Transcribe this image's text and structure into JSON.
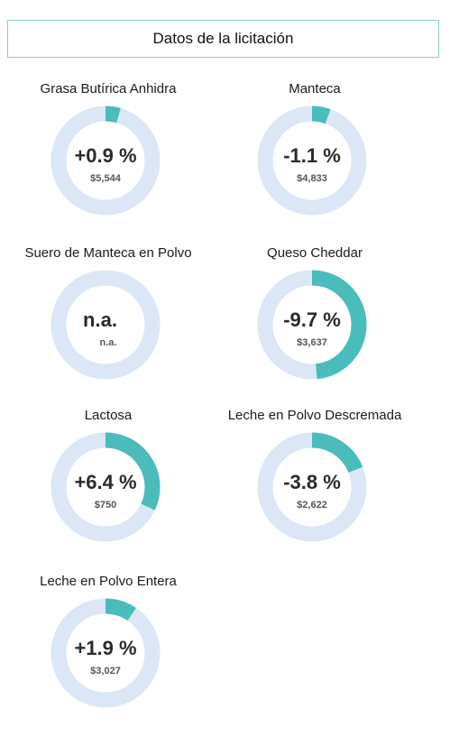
{
  "header": {
    "title": "Datos de la licitación"
  },
  "colors": {
    "track": "#dbe7f6",
    "fill": "#4bbcbc",
    "border": "#8fcfca"
  },
  "chart_data": {
    "type": "donut-grid",
    "items": [
      {
        "label": "Grasa Butírica Anhidra",
        "change": "+0.9 %",
        "price": "$5,544",
        "value": 0.9
      },
      {
        "label": "Manteca",
        "change": "-1.1 %",
        "price": "$4,833",
        "value": -1.1
      },
      {
        "label": "Suero de Manteca en Polvo",
        "change": "n.a.",
        "price": "n.a.",
        "value": null
      },
      {
        "label": "Queso Cheddar",
        "change": "-9.7 %",
        "price": "$3,637",
        "value": -9.7
      },
      {
        "label": "Lactosa",
        "change": "+6.4 %",
        "price": "$750",
        "value": 6.4
      },
      {
        "label": "Leche en Polvo Descremada",
        "change": "-3.8 %",
        "price": "$2,622",
        "value": -3.8
      },
      {
        "label": "Leche en Polvo Entera",
        "change": "+1.9 %",
        "price": "$3,027",
        "value": 1.9
      }
    ]
  }
}
